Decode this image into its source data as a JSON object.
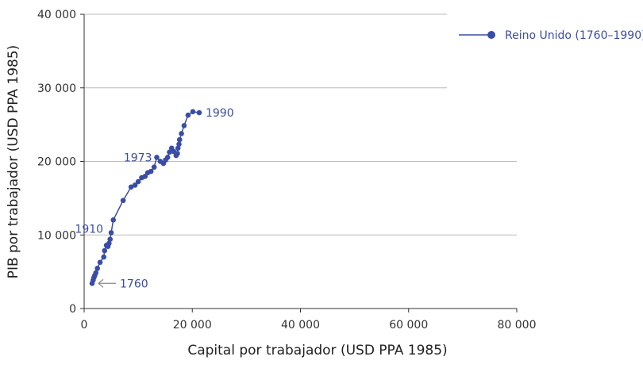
{
  "chart_data": {
    "type": "line",
    "title": "",
    "xlabel": "Capital por trabajador (USD PPA 1985)",
    "ylabel": "PIB por trabajador (USD PPA 1985)",
    "xlim": [
      0,
      80000
    ],
    "ylim": [
      0,
      40000
    ],
    "xticks": [
      0,
      20000,
      40000,
      60000,
      80000
    ],
    "xtick_labels": [
      "0",
      "20 000",
      "40 000",
      "60 000",
      "80 000"
    ],
    "yticks": [
      0,
      10000,
      20000,
      30000,
      40000
    ],
    "ytick_labels": [
      "0",
      "10 000",
      "20 000",
      "30 000",
      "40 000"
    ],
    "grid": "horizontal",
    "legend_position": "top-right",
    "series": [
      {
        "name": "Reino Unido (1760–1990)",
        "color": "#3a4da6",
        "points": [
          [
            1470,
            3420
          ],
          [
            1660,
            3850
          ],
          [
            1810,
            4200
          ],
          [
            1960,
            4490
          ],
          [
            2160,
            4850
          ],
          [
            2450,
            5460
          ],
          [
            2940,
            6280
          ],
          [
            3630,
            7000
          ],
          [
            3780,
            7870
          ],
          [
            4120,
            8590
          ],
          [
            4410,
            8440
          ],
          [
            4600,
            8870
          ],
          [
            4800,
            9410
          ],
          [
            5000,
            10310
          ],
          [
            5390,
            12040
          ],
          [
            7210,
            14690
          ],
          [
            8680,
            16520
          ],
          [
            9410,
            16770
          ],
          [
            10000,
            17240
          ],
          [
            10640,
            17780
          ],
          [
            11270,
            17960
          ],
          [
            11760,
            18460
          ],
          [
            12350,
            18640
          ],
          [
            12940,
            19220
          ],
          [
            13430,
            20550
          ],
          [
            14070,
            20010
          ],
          [
            14660,
            19720
          ],
          [
            15050,
            20190
          ],
          [
            15440,
            20550
          ],
          [
            15780,
            21260
          ],
          [
            16180,
            21800
          ],
          [
            16570,
            21340
          ],
          [
            17010,
            20800
          ],
          [
            17250,
            21080
          ],
          [
            17350,
            21800
          ],
          [
            17540,
            22340
          ],
          [
            17650,
            22950
          ],
          [
            17990,
            23780
          ],
          [
            18480,
            24860
          ],
          [
            19220,
            26290
          ],
          [
            20100,
            26760
          ],
          [
            21280,
            26620
          ]
        ]
      }
    ],
    "annotations": [
      {
        "text": "1760",
        "x": 1470,
        "y": 3420,
        "arrow": true
      },
      {
        "text": "1910",
        "x": 5000,
        "y": 10310
      },
      {
        "text": "1973",
        "x": 13430,
        "y": 20550
      },
      {
        "text": "1990",
        "x": 21280,
        "y": 26620
      }
    ]
  }
}
